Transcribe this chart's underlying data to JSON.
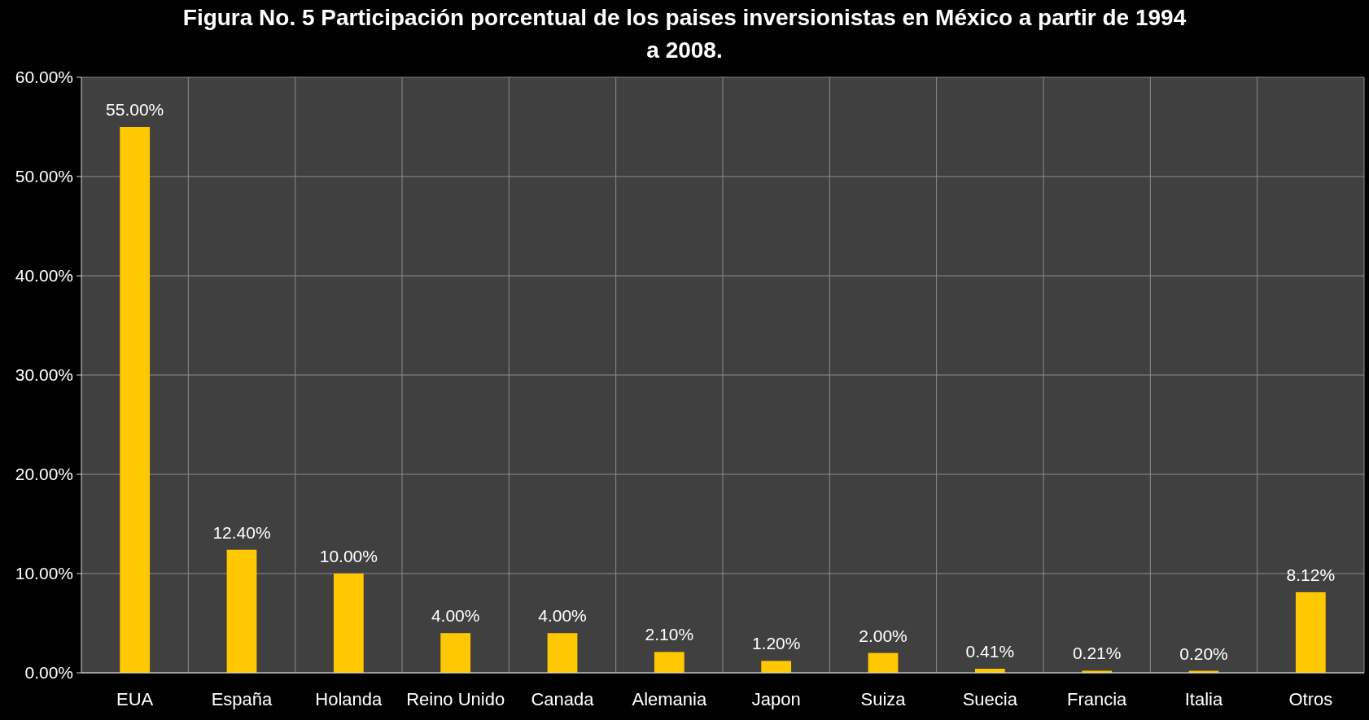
{
  "chart_data": {
    "type": "bar",
    "title": "Figura No. 5  Participación porcentual de los paises inversionistas en México a partir de 1994 a 2008.",
    "categories": [
      "EUA",
      "España",
      "Holanda",
      "Reino Unido",
      "Canada",
      "Alemania",
      "Japon",
      "Suiza",
      "Suecia",
      "Francia",
      "Italia",
      "Otros"
    ],
    "values": [
      55,
      12.4,
      10,
      4,
      4,
      2.1,
      1.2,
      2,
      0.41,
      0.21,
      0.2,
      8.12
    ],
    "value_labels": [
      "55.00%",
      "12.40%",
      "10.00%",
      "4.00%",
      "4.00%",
      "2.10%",
      "1.20%",
      "2.00%",
      "0.41%",
      "0.21%",
      "0.20%",
      "8.12%"
    ],
    "color": "#ffc800",
    "ylim": [
      0,
      60
    ],
    "yticks": [
      {
        "value": 0,
        "label": "0.00%"
      },
      {
        "value": 10,
        "label": "10.00%"
      },
      {
        "value": 20,
        "label": "20.00%"
      },
      {
        "value": 30,
        "label": "30.00%"
      },
      {
        "value": 40,
        "label": "40.00%"
      },
      {
        "value": 50,
        "label": "50.00%"
      },
      {
        "value": 60,
        "label": "60.00%"
      }
    ],
    "grid": true
  }
}
